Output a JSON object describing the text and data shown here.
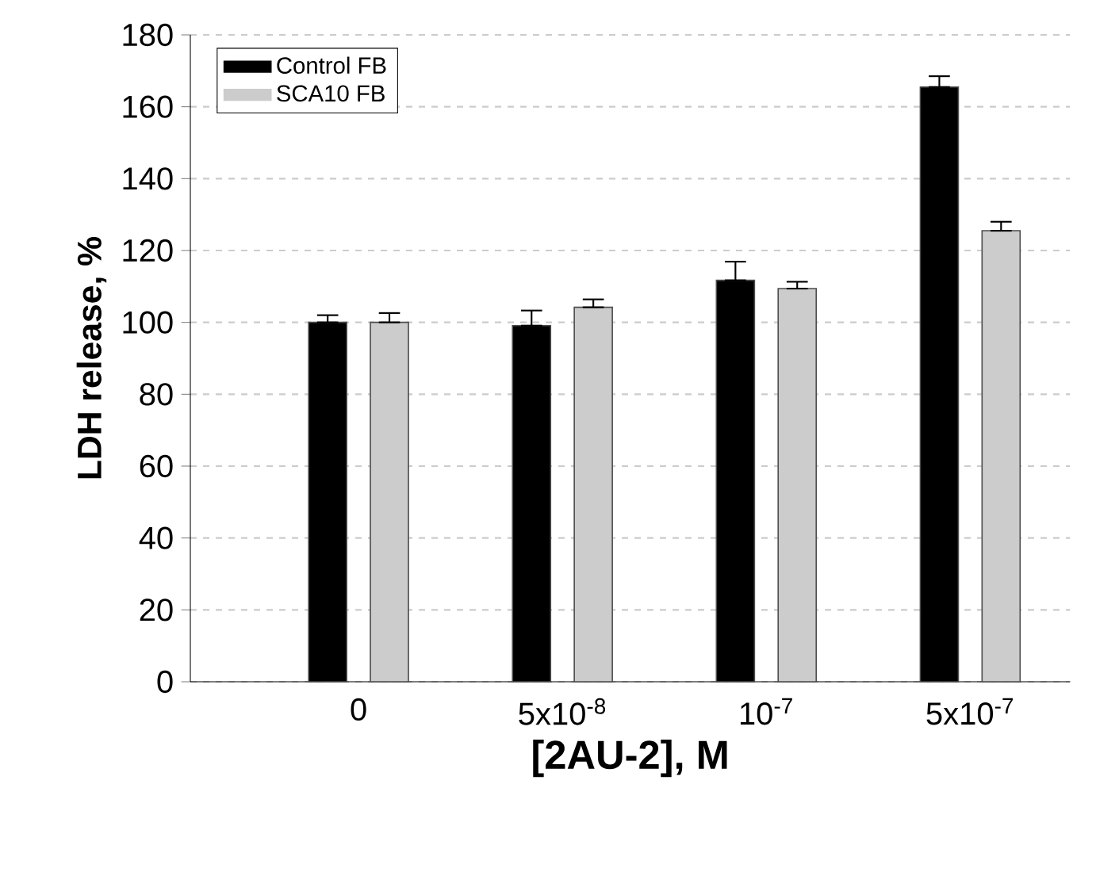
{
  "chart_data": {
    "type": "bar",
    "xlabel": "[2AU-2], M",
    "ylabel": "LDH release, %",
    "categories": [
      "0",
      "5x10$^{-8}$",
      "10$^{-7}$",
      "5x10$^{-7}$"
    ],
    "series": [
      {
        "name": "Control FB",
        "color": "#000000",
        "values": [
          100,
          99.1,
          111.7,
          165.5
        ],
        "errors": [
          [
            100,
            102
          ],
          [
            99.1,
            103.3
          ],
          [
            111.7,
            116.9
          ],
          [
            165.5,
            168.5
          ]
        ]
      },
      {
        "name": "SCA10 FB",
        "color": "#cccccc",
        "values": [
          100,
          104.2,
          109.4,
          125.5
        ],
        "errors": [
          [
            100,
            102.6
          ],
          [
            104.2,
            106.4
          ],
          [
            109.4,
            111.3
          ],
          [
            125.5,
            128
          ]
        ]
      }
    ],
    "ylim": [
      0,
      180
    ],
    "yticks": [
      0,
      20,
      40,
      60,
      80,
      100,
      120,
      140,
      160,
      180
    ],
    "grid": "y",
    "legend": "top left"
  }
}
